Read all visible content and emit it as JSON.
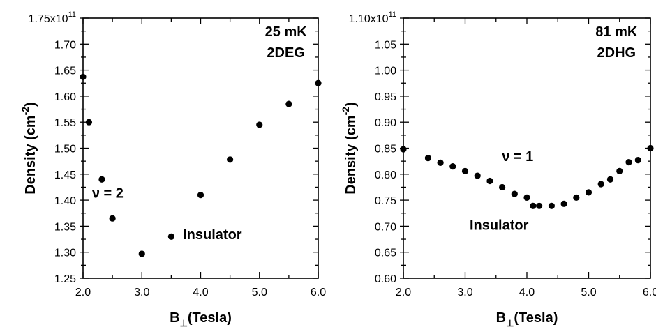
{
  "chart_data": [
    {
      "type": "scatter",
      "xlabel": "B",
      "xlabel_sub": "⊥",
      "xlabel_unit": "(Tesla)",
      "ylabel": "Density (cm",
      "ylabel_sup": "-2",
      "ylabel_end": ")",
      "xlim": [
        2.0,
        6.0
      ],
      "ylim": [
        1.25,
        1.75
      ],
      "x_ticks": [
        2.0,
        3.0,
        4.0,
        5.0,
        6.0
      ],
      "x_tick_labels": [
        "2.0",
        "3.0",
        "4.0",
        "5.0",
        "6.0"
      ],
      "y_ticks": [
        1.25,
        1.3,
        1.35,
        1.4,
        1.45,
        1.5,
        1.55,
        1.6,
        1.65,
        1.7,
        1.75
      ],
      "y_tick_labels": [
        "1.25",
        "1.30",
        "1.35",
        "1.40",
        "1.45",
        "1.50",
        "1.55",
        "1.60",
        "1.65",
        "1.70",
        "1.75x10"
      ],
      "y_top_exponent": "11",
      "annotations": [
        {
          "text": "25 mK",
          "x": 5.45,
          "y": 1.715
        },
        {
          "text": "2DEG",
          "x": 5.45,
          "y": 1.675
        },
        {
          "text": "ν = 2",
          "x": 2.42,
          "y": 1.405
        },
        {
          "text": "Insulator",
          "x": 4.2,
          "y": 1.325
        }
      ],
      "series": [
        {
          "x": [
            2.0,
            2.1,
            2.32,
            2.5,
            3.0,
            3.5,
            4.0,
            4.5,
            5.0,
            5.5,
            6.0
          ],
          "y": [
            1.637,
            1.55,
            1.44,
            1.365,
            1.297,
            1.33,
            1.41,
            1.478,
            1.545,
            1.585,
            1.625
          ]
        }
      ]
    },
    {
      "type": "scatter",
      "xlabel": "B",
      "xlabel_sub": "⊥",
      "xlabel_unit": "(Tesla)",
      "ylabel": "Density (cm",
      "ylabel_sup": "-2",
      "ylabel_end": ")",
      "xlim": [
        2.0,
        6.0
      ],
      "ylim": [
        0.6,
        1.1
      ],
      "x_ticks": [
        2.0,
        3.0,
        4.0,
        5.0,
        6.0
      ],
      "x_tick_labels": [
        "2.0",
        "3.0",
        "4.0",
        "5.0",
        "6.0"
      ],
      "y_ticks": [
        0.6,
        0.65,
        0.7,
        0.75,
        0.8,
        0.85,
        0.9,
        0.95,
        1.0,
        1.05,
        1.1
      ],
      "y_tick_labels": [
        "0.60",
        "0.65",
        "0.70",
        "0.75",
        "0.80",
        "0.85",
        "0.90",
        "0.95",
        "1.00",
        "1.05",
        "1.10x10"
      ],
      "y_top_exponent": "11",
      "annotations": [
        {
          "text": "81 mK",
          "x": 5.45,
          "y": 1.065
        },
        {
          "text": "2DHG",
          "x": 5.45,
          "y": 1.025
        },
        {
          "text": "ν = 1",
          "x": 3.85,
          "y": 0.825
        },
        {
          "text": "Insulator",
          "x": 3.55,
          "y": 0.693
        }
      ],
      "series": [
        {
          "x": [
            2.0,
            2.4,
            2.6,
            2.8,
            3.0,
            3.2,
            3.4,
            3.6,
            3.8,
            4.0,
            4.1,
            4.2,
            4.4,
            4.6,
            4.8,
            5.0,
            5.2,
            5.35,
            5.5,
            5.65,
            5.8,
            6.0
          ],
          "y": [
            0.848,
            0.831,
            0.822,
            0.815,
            0.806,
            0.797,
            0.787,
            0.775,
            0.762,
            0.755,
            0.739,
            0.739,
            0.739,
            0.743,
            0.755,
            0.765,
            0.781,
            0.79,
            0.806,
            0.823,
            0.827,
            0.85
          ]
        }
      ]
    }
  ]
}
